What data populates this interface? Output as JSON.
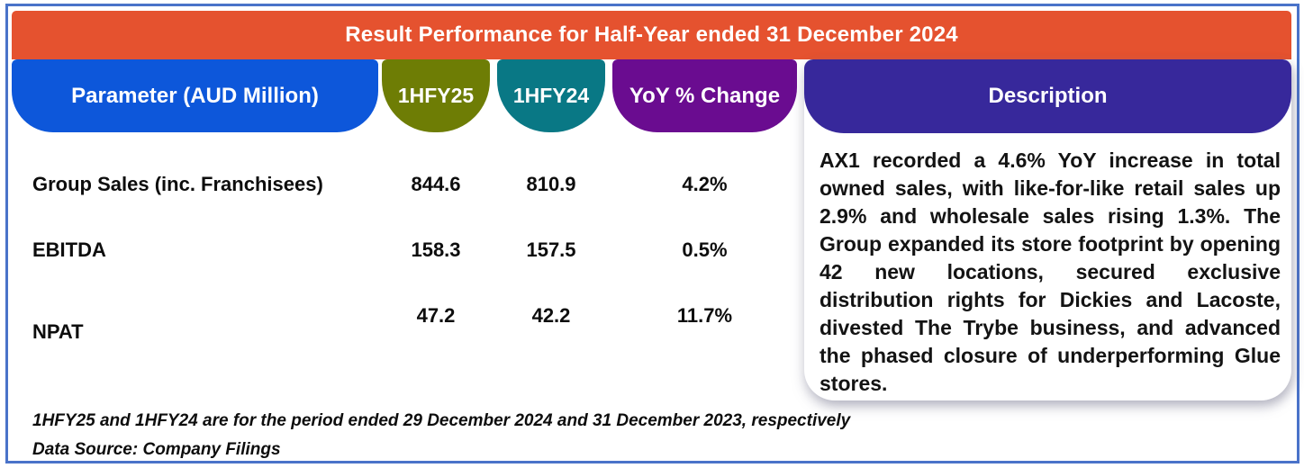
{
  "title": "Result Performance for Half-Year ended 31 December 2024",
  "table": {
    "columns": [
      {
        "label": "Parameter (AUD Million)",
        "color": "#0d57da"
      },
      {
        "label": "1HFY25",
        "color": "#6e7d05"
      },
      {
        "label": "1HFY24",
        "color": "#097885"
      },
      {
        "label": "YoY % Change",
        "color": "#6a0c90"
      }
    ],
    "rows": [
      {
        "parameter": "Group Sales (inc. Franchisees)",
        "hfy25": "844.6",
        "hfy24": "810.9",
        "yoy": "4.2%"
      },
      {
        "parameter": "EBITDA",
        "hfy25": "158.3",
        "hfy24": "157.5",
        "yoy": "0.5%"
      },
      {
        "parameter": "NPAT",
        "hfy25": "47.2",
        "hfy24": "42.2",
        "yoy": "11.7%"
      }
    ]
  },
  "description": {
    "header": "Description",
    "header_color": "#37289b",
    "body": "AX1 recorded a 4.6% YoY increase in total owned sales, with like-for-like retail sales up 2.9% and wholesale sales rising 1.3%. The Group expanded its store footprint by opening 42 new locations, secured exclusive distribution rights for Dickies and Lacoste, divested The Trybe business, and advanced the phased closure of underperforming Glue stores."
  },
  "footnotes": [
    "1HFY25 and 1HFY24 are for the period ended 29 December 2024 and 31 December 2023, respectively",
    "Data Source: Company Filings"
  ],
  "colors": {
    "title_bar": "#e5522f",
    "parameter_pill": "#0d57da",
    "hfy25_pill": "#6e7d05",
    "hfy24_pill": "#097885",
    "yoy_pill": "#6a0c90",
    "description_header": "#37289b",
    "outer_border": "#4a73c9",
    "body_text": "#0d0d0d"
  },
  "chart_data": {
    "type": "table",
    "title": "Result Performance for Half-Year ended 31 December 2024",
    "columns": [
      "Parameter (AUD Million)",
      "1HFY25",
      "1HFY24",
      "YoY % Change"
    ],
    "rows": [
      [
        "Group Sales (inc. Franchisees)",
        844.6,
        810.9,
        "4.2%"
      ],
      [
        "EBITDA",
        158.3,
        157.5,
        "0.5%"
      ],
      [
        "NPAT",
        47.2,
        42.2,
        "11.7%"
      ]
    ]
  }
}
